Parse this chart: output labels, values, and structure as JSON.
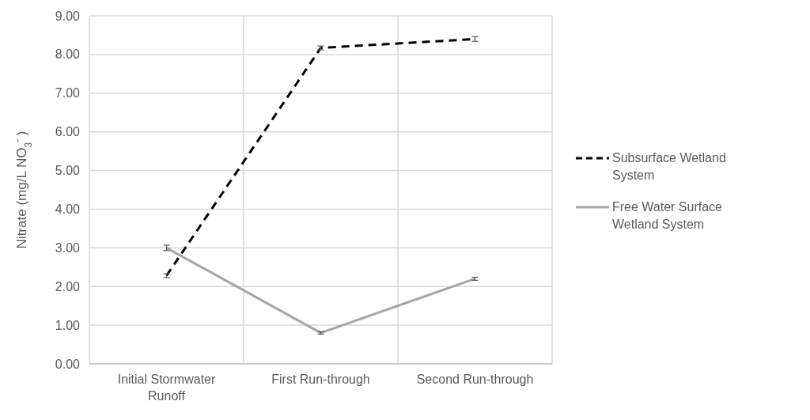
{
  "chart_data": {
    "type": "line",
    "ylabel": "Nitrate (mg/L NO$_{3}$$^{-}$ )",
    "categories": [
      "Initial Stormwater Runoff",
      "First Run-through",
      "Second Run-through"
    ],
    "series": [
      {
        "name": "Subsurface Wetland System",
        "color": "#000000",
        "line_style": "dashed",
        "values": [
          2.28,
          8.17,
          8.4
        ],
        "errors": [
          0.05,
          0.05,
          0.06
        ]
      },
      {
        "name": "Free Water Surface Wetland System",
        "color": "#a6a6a6",
        "line_style": "solid",
        "values": [
          3.0,
          0.8,
          2.2
        ],
        "errors": [
          0.07,
          0.03,
          0.04
        ]
      }
    ],
    "ylim": [
      0,
      9
    ],
    "yticks": [
      {
        "value": 0,
        "label": "0.00"
      },
      {
        "value": 1,
        "label": "1.00"
      },
      {
        "value": 2,
        "label": "2.00"
      },
      {
        "value": 3,
        "label": "3.00"
      },
      {
        "value": 4,
        "label": "4.00"
      },
      {
        "value": 5,
        "label": "5.00"
      },
      {
        "value": 6,
        "label": "6.00"
      },
      {
        "value": 7,
        "label": "7.00"
      },
      {
        "value": 8,
        "label": "8.00"
      },
      {
        "value": 9,
        "label": "9.00"
      }
    ],
    "grid": true,
    "legend": "right",
    "marker": "none"
  }
}
